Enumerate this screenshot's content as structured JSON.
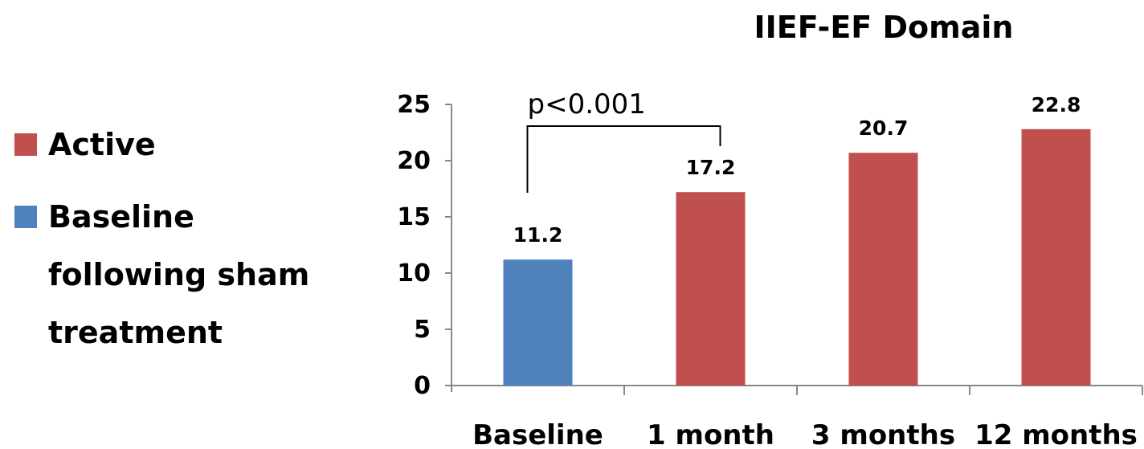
{
  "chart_data": {
    "type": "bar",
    "title": "IIEF-EF Domain",
    "categories": [
      "Baseline",
      "1 month",
      "3 months",
      "12 months"
    ],
    "values": [
      11.2,
      17.2,
      20.7,
      22.8
    ],
    "value_labels": [
      "11.2",
      "17.2",
      "20.7",
      "22.8"
    ],
    "bar_series": [
      "Baseline",
      "Active",
      "Active",
      "Active"
    ],
    "ylim": [
      0,
      25
    ],
    "yticks": [
      0,
      5,
      10,
      15,
      20,
      25
    ],
    "xlabel": "",
    "ylabel": "",
    "grid": false,
    "series": [
      {
        "name": "Active",
        "color": "#C0504D"
      },
      {
        "name": "Baseline",
        "color": "#4F81BD"
      }
    ],
    "legend": {
      "placement": "left",
      "items": [
        {
          "label": "Active",
          "color": "#C0504D"
        },
        {
          "label": "Baseline",
          "color": "#4F81BD"
        }
      ],
      "note_lines": [
        "following sham",
        "treatment"
      ]
    },
    "annotations": [
      {
        "text": "p<0.001",
        "from_category": "Baseline",
        "to_category": "1 month"
      }
    ]
  }
}
